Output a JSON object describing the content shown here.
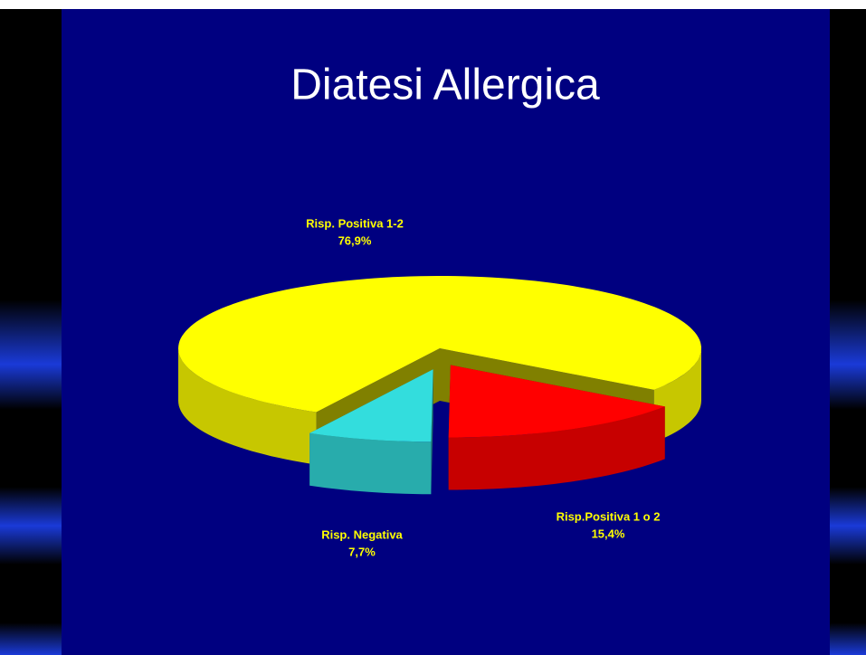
{
  "chart_data": {
    "type": "pie3d",
    "title": "Diatesi  Allergica",
    "categories": [
      "Risp. Positiva 1-2",
      "Risp.Positiva 1 o 2",
      "Risp. Negativa"
    ],
    "values": [
      76.9,
      15.4,
      7.7
    ],
    "value_labels": [
      "76,9%",
      "15,4%",
      "7,7%"
    ],
    "colors": [
      "#ffff00",
      "#ff0000",
      "#33dddd"
    ]
  }
}
